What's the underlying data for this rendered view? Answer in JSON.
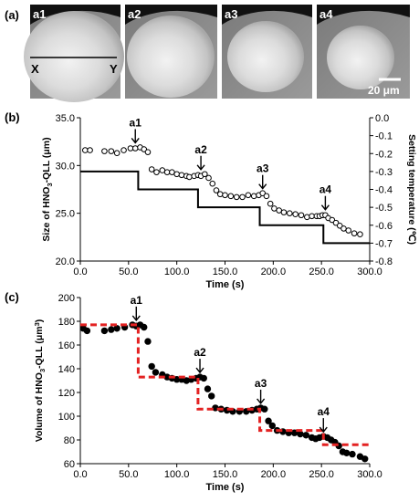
{
  "panel_labels": {
    "a": "(a)",
    "b": "(b)",
    "c": "(c)"
  },
  "images": {
    "tiles": [
      {
        "label": "a1"
      },
      {
        "label": "a2"
      },
      {
        "label": "a3"
      },
      {
        "label": "a4"
      }
    ],
    "line_labels": {
      "left": "X",
      "right": "Y"
    },
    "scalebar_label": "20 μm"
  },
  "chart_data": [
    {
      "type": "scatter",
      "panel": "(b)",
      "xlabel": "Time (s)",
      "ylabel": "Size of HNO3-QLL (μm)",
      "ylabel_parts": [
        "Size of HNO",
        "3",
        "-QLL (μm)"
      ],
      "y2label": "Setting temperature (℃)",
      "xlim": [
        0,
        300
      ],
      "ylim": [
        20,
        35
      ],
      "y2lim": [
        -0.8,
        0
      ],
      "xticks": [
        "0.0",
        "50.0",
        "100.0",
        "150.0",
        "200.0",
        "250.0",
        "300.0"
      ],
      "xtick_values": [
        0,
        50,
        100,
        150,
        200,
        250,
        300
      ],
      "yticks": [
        "20.0",
        "25.0",
        "30.0",
        "35.0"
      ],
      "ytick_values": [
        20,
        25,
        30,
        35
      ],
      "y2ticks": [
        "0.0",
        "-0.1",
        "-0.2",
        "-0.3",
        "-0.4",
        "-0.5",
        "-0.6",
        "-0.7",
        "-0.8"
      ],
      "y2tick_values": [
        0,
        -0.1,
        -0.2,
        -0.3,
        -0.4,
        -0.5,
        -0.6,
        -0.7,
        -0.8
      ],
      "series": [
        {
          "marker": "open-circle",
          "axis": "left",
          "x": [
            5,
            10,
            25,
            32,
            38,
            45,
            52,
            57,
            62,
            66,
            70,
            74,
            79,
            85,
            90,
            95,
            100,
            105,
            110,
            113,
            118,
            122,
            125,
            129,
            133,
            137,
            141,
            145,
            150,
            156,
            162,
            168,
            174,
            180,
            185,
            189,
            193,
            197,
            201,
            206,
            211,
            217,
            223,
            229,
            235,
            240,
            245,
            248,
            251,
            254,
            257,
            261,
            265,
            269,
            273,
            278,
            284,
            290
          ],
          "y": [
            31.6,
            31.6,
            31.5,
            31.5,
            31.3,
            31.6,
            31.8,
            31.8,
            31.9,
            31.7,
            31.4,
            29.6,
            29.3,
            29.5,
            29.3,
            29.3,
            29.1,
            29.0,
            28.9,
            28.8,
            28.9,
            29.0,
            28.9,
            29.1,
            28.7,
            28.1,
            27.4,
            27.0,
            26.9,
            26.8,
            26.7,
            26.7,
            26.9,
            26.8,
            26.9,
            27.1,
            26.8,
            26.0,
            25.5,
            25.3,
            25.1,
            25.0,
            24.9,
            24.8,
            24.6,
            24.7,
            24.7,
            24.7,
            24.8,
            24.8,
            24.5,
            24.3,
            24.0,
            23.7,
            23.4,
            23.2,
            22.9,
            22.8
          ]
        },
        {
          "marker": "step-line",
          "color": "#000000",
          "axis": "right",
          "x": [
            0,
            60,
            60,
            122,
            122,
            186,
            186,
            252,
            252,
            300
          ],
          "y": [
            -0.3,
            -0.3,
            -0.4,
            -0.4,
            -0.5,
            -0.5,
            -0.6,
            -0.6,
            -0.7,
            -0.7
          ]
        }
      ],
      "annotations": [
        {
          "label": "a1",
          "x": 57,
          "y": 31.9
        },
        {
          "label": "a2",
          "x": 125,
          "y": 29.1
        },
        {
          "label": "a3",
          "x": 189,
          "y": 27.1
        },
        {
          "label": "a4",
          "x": 254,
          "y": 24.9
        }
      ]
    },
    {
      "type": "scatter",
      "panel": "(c)",
      "xlabel": "Time (s)",
      "ylabel": "Volume of HNO3-QLL (μm3)",
      "ylabel_parts": [
        "Volume of HNO",
        "3",
        "-QLL (μm",
        "3",
        ")"
      ],
      "xlim": [
        0,
        300
      ],
      "ylim": [
        60,
        200
      ],
      "xticks": [
        "0.0",
        "50.0",
        "100.0",
        "150.0",
        "200.0",
        "250.0",
        "300.0"
      ],
      "xtick_values": [
        0,
        50,
        100,
        150,
        200,
        250,
        300
      ],
      "yticks": [
        "60",
        "80",
        "100",
        "120",
        "140",
        "160",
        "180",
        "200"
      ],
      "ytick_values": [
        60,
        80,
        100,
        120,
        140,
        160,
        180,
        200
      ],
      "series": [
        {
          "marker": "filled-circle",
          "x": [
            3,
            7,
            25,
            32,
            38,
            46,
            54,
            58,
            62,
            66,
            70,
            74,
            78,
            85,
            90,
            95,
            100,
            105,
            110,
            115,
            120,
            124,
            128,
            132,
            136,
            140,
            146,
            152,
            158,
            165,
            172,
            178,
            183,
            187,
            191,
            195,
            199,
            204,
            210,
            216,
            222,
            228,
            234,
            240,
            244,
            248,
            252,
            256,
            260,
            264,
            268,
            272,
            276,
            282,
            290,
            295
          ],
          "y": [
            174,
            172,
            172,
            173,
            174,
            175,
            177,
            176,
            177,
            175,
            163,
            142,
            137,
            135,
            133,
            132,
            131,
            131,
            130,
            131,
            132,
            133,
            132,
            123,
            117,
            107,
            106,
            105,
            104,
            104,
            104,
            105,
            106,
            107,
            106,
            96,
            92,
            88,
            87,
            86,
            86,
            85,
            84,
            82,
            81,
            82,
            83,
            82,
            80,
            78,
            75,
            70,
            69,
            68,
            66,
            64
          ]
        },
        {
          "marker": "dashed-step-line",
          "color": "#e32222",
          "x": [
            0,
            60,
            60,
            122,
            122,
            186,
            186,
            252,
            252,
            300
          ],
          "y": [
            177,
            177,
            133,
            133,
            106,
            106,
            88,
            88,
            76,
            76
          ]
        }
      ],
      "annotations": [
        {
          "label": "a1",
          "x": 58,
          "y": 177
        },
        {
          "label": "a2",
          "x": 124,
          "y": 133
        },
        {
          "label": "a3",
          "x": 187,
          "y": 107
        },
        {
          "label": "a4",
          "x": 252,
          "y": 83
        }
      ]
    }
  ]
}
